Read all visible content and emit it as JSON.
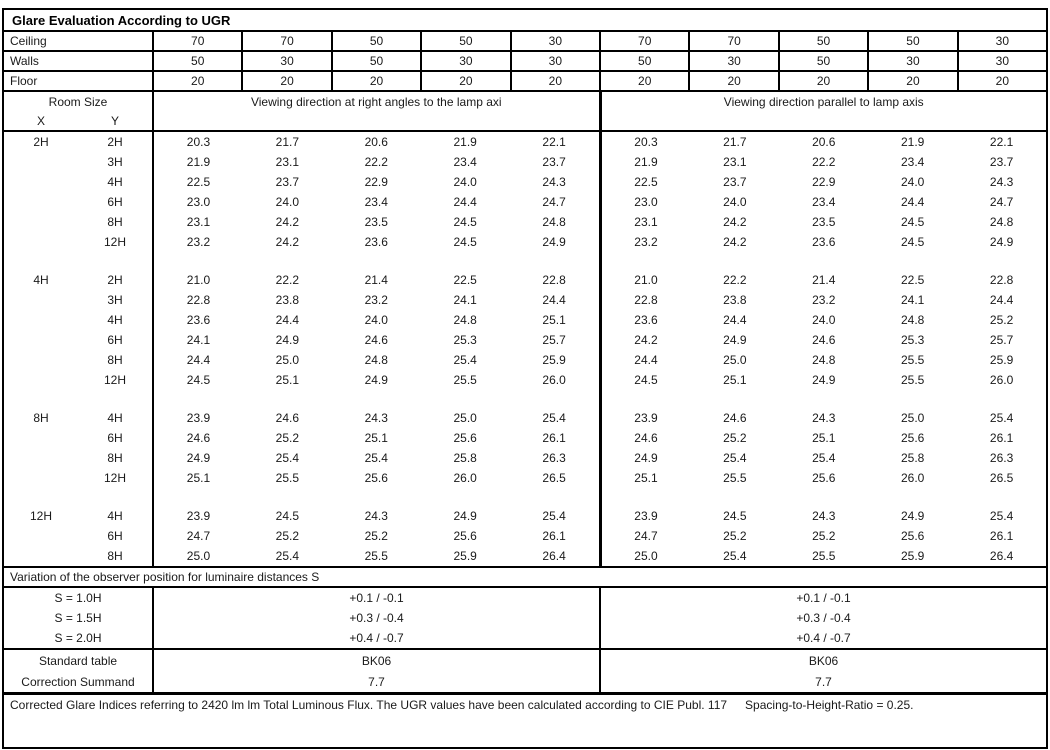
{
  "title": "Glare Evaluation According to UGR",
  "reflectances": {
    "rows": [
      {
        "label": "Ceiling",
        "values": [
          "70",
          "70",
          "50",
          "50",
          "30",
          "70",
          "70",
          "50",
          "50",
          "30"
        ]
      },
      {
        "label": "Walls",
        "values": [
          "50",
          "30",
          "50",
          "30",
          "30",
          "50",
          "30",
          "50",
          "30",
          "30"
        ]
      },
      {
        "label": "Floor",
        "values": [
          "20",
          "20",
          "20",
          "20",
          "20",
          "20",
          "20",
          "20",
          "20",
          "20"
        ]
      }
    ]
  },
  "header": {
    "room_size": "Room Size",
    "x": "X",
    "y": "Y",
    "left_title": "Viewing direction at right angles to the lamp axi",
    "right_title": "Viewing direction parallel to lamp axis"
  },
  "blocks": [
    {
      "x": "2H",
      "rows": [
        {
          "y": "2H",
          "left": [
            "20.3",
            "21.7",
            "20.6",
            "21.9",
            "22.1"
          ],
          "right": [
            "20.3",
            "21.7",
            "20.6",
            "21.9",
            "22.1"
          ]
        },
        {
          "y": "3H",
          "left": [
            "21.9",
            "23.1",
            "22.2",
            "23.4",
            "23.7"
          ],
          "right": [
            "21.9",
            "23.1",
            "22.2",
            "23.4",
            "23.7"
          ]
        },
        {
          "y": "4H",
          "left": [
            "22.5",
            "23.7",
            "22.9",
            "24.0",
            "24.3"
          ],
          "right": [
            "22.5",
            "23.7",
            "22.9",
            "24.0",
            "24.3"
          ]
        },
        {
          "y": "6H",
          "left": [
            "23.0",
            "24.0",
            "23.4",
            "24.4",
            "24.7"
          ],
          "right": [
            "23.0",
            "24.0",
            "23.4",
            "24.4",
            "24.7"
          ]
        },
        {
          "y": "8H",
          "left": [
            "23.1",
            "24.2",
            "23.5",
            "24.5",
            "24.8"
          ],
          "right": [
            "23.1",
            "24.2",
            "23.5",
            "24.5",
            "24.8"
          ]
        },
        {
          "y": "12H",
          "left": [
            "23.2",
            "24.2",
            "23.6",
            "24.5",
            "24.9"
          ],
          "right": [
            "23.2",
            "24.2",
            "23.6",
            "24.5",
            "24.9"
          ]
        }
      ]
    },
    {
      "x": "4H",
      "rows": [
        {
          "y": "2H",
          "left": [
            "21.0",
            "22.2",
            "21.4",
            "22.5",
            "22.8"
          ],
          "right": [
            "21.0",
            "22.2",
            "21.4",
            "22.5",
            "22.8"
          ]
        },
        {
          "y": "3H",
          "left": [
            "22.8",
            "23.8",
            "23.2",
            "24.1",
            "24.4"
          ],
          "right": [
            "22.8",
            "23.8",
            "23.2",
            "24.1",
            "24.4"
          ]
        },
        {
          "y": "4H",
          "left": [
            "23.6",
            "24.4",
            "24.0",
            "24.8",
            "25.1"
          ],
          "right": [
            "23.6",
            "24.4",
            "24.0",
            "24.8",
            "25.2"
          ]
        },
        {
          "y": "6H",
          "left": [
            "24.1",
            "24.9",
            "24.6",
            "25.3",
            "25.7"
          ],
          "right": [
            "24.2",
            "24.9",
            "24.6",
            "25.3",
            "25.7"
          ]
        },
        {
          "y": "8H",
          "left": [
            "24.4",
            "25.0",
            "24.8",
            "25.4",
            "25.9"
          ],
          "right": [
            "24.4",
            "25.0",
            "24.8",
            "25.5",
            "25.9"
          ]
        },
        {
          "y": "12H",
          "left": [
            "24.5",
            "25.1",
            "24.9",
            "25.5",
            "26.0"
          ],
          "right": [
            "24.5",
            "25.1",
            "24.9",
            "25.5",
            "26.0"
          ]
        }
      ]
    },
    {
      "x": "8H",
      "rows": [
        {
          "y": "4H",
          "left": [
            "23.9",
            "24.6",
            "24.3",
            "25.0",
            "25.4"
          ],
          "right": [
            "23.9",
            "24.6",
            "24.3",
            "25.0",
            "25.4"
          ]
        },
        {
          "y": "6H",
          "left": [
            "24.6",
            "25.2",
            "25.1",
            "25.6",
            "26.1"
          ],
          "right": [
            "24.6",
            "25.2",
            "25.1",
            "25.6",
            "26.1"
          ]
        },
        {
          "y": "8H",
          "left": [
            "24.9",
            "25.4",
            "25.4",
            "25.8",
            "26.3"
          ],
          "right": [
            "24.9",
            "25.4",
            "25.4",
            "25.8",
            "26.3"
          ]
        },
        {
          "y": "12H",
          "left": [
            "25.1",
            "25.5",
            "25.6",
            "26.0",
            "26.5"
          ],
          "right": [
            "25.1",
            "25.5",
            "25.6",
            "26.0",
            "26.5"
          ]
        }
      ]
    },
    {
      "x": "12H",
      "rows": [
        {
          "y": "4H",
          "left": [
            "23.9",
            "24.5",
            "24.3",
            "24.9",
            "25.4"
          ],
          "right": [
            "23.9",
            "24.5",
            "24.3",
            "24.9",
            "25.4"
          ]
        },
        {
          "y": "6H",
          "left": [
            "24.7",
            "25.2",
            "25.2",
            "25.6",
            "26.1"
          ],
          "right": [
            "24.7",
            "25.2",
            "25.2",
            "25.6",
            "26.1"
          ]
        },
        {
          "y": "8H",
          "left": [
            "25.0",
            "25.4",
            "25.5",
            "25.9",
            "26.4"
          ],
          "right": [
            "25.0",
            "25.4",
            "25.5",
            "25.9",
            "26.4"
          ]
        }
      ]
    }
  ],
  "variation": {
    "title": "Variation of the observer position for luminaire distances S",
    "rows": [
      {
        "label": "S = 1.0H",
        "left": "+0.1 / -0.1",
        "right": "+0.1 / -0.1"
      },
      {
        "label": "S = 1.5H",
        "left": "+0.3 / -0.4",
        "right": "+0.3 / -0.4"
      },
      {
        "label": "S = 2.0H",
        "left": "+0.4 / -0.7",
        "right": "+0.4 / -0.7"
      }
    ]
  },
  "summary": {
    "rows": [
      {
        "label": "Standard table",
        "left": "BK06",
        "right": "BK06"
      },
      {
        "label": "Correction Summand",
        "left": "7.7",
        "right": "7.7"
      }
    ]
  },
  "footer": {
    "text": "Corrected Glare Indices referring to 2420 lm lm Total Luminous Flux. The UGR values have been calculated according to CIE Publ. 117",
    "ratio": "Spacing-to-Height-Ratio = 0.25."
  }
}
